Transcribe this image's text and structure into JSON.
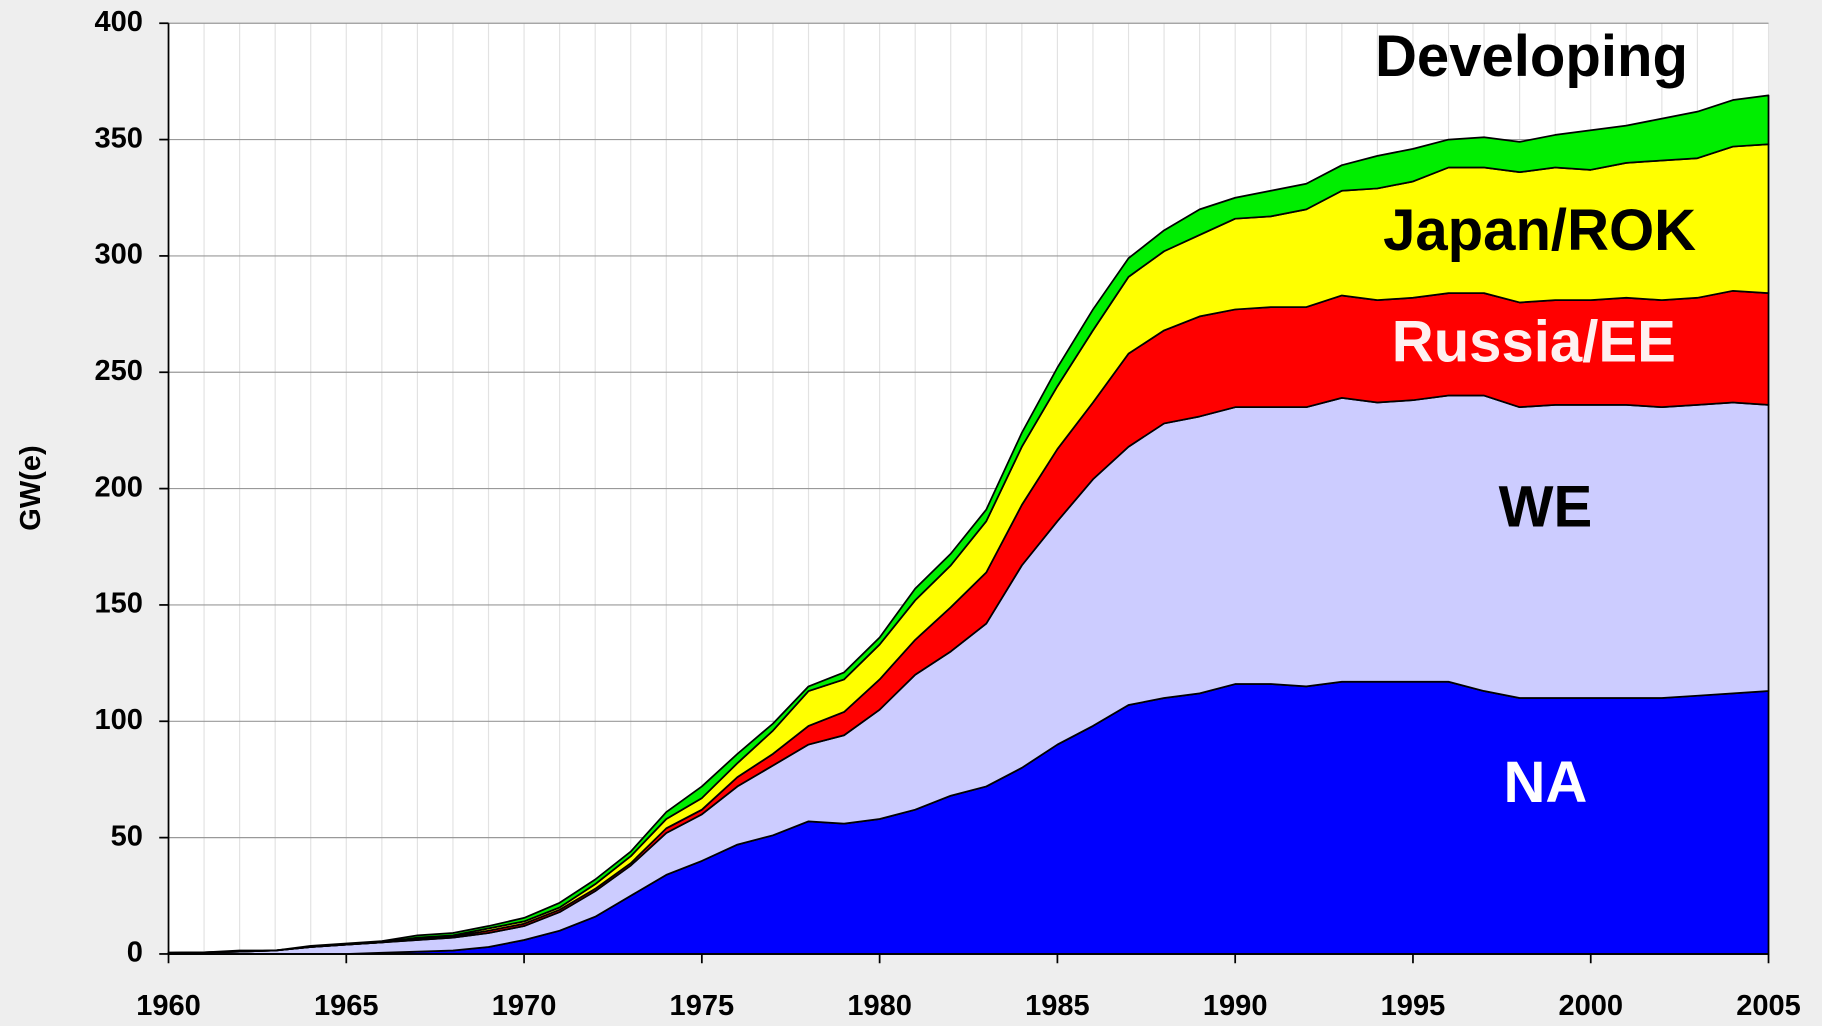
{
  "chart_data": {
    "type": "stacked-area",
    "y_label": "GW(e)",
    "x": [
      1960,
      1961,
      1962,
      1963,
      1964,
      1965,
      1966,
      1967,
      1968,
      1969,
      1970,
      1971,
      1972,
      1973,
      1974,
      1975,
      1976,
      1977,
      1978,
      1979,
      1980,
      1981,
      1982,
      1983,
      1984,
      1985,
      1986,
      1987,
      1988,
      1989,
      1990,
      1991,
      1992,
      1993,
      1994,
      1995,
      1996,
      1997,
      1998,
      1999,
      2000,
      2001,
      2002,
      2003,
      2004,
      2005
    ],
    "xlim": [
      1960,
      2005
    ],
    "xticks": [
      1960,
      1965,
      1970,
      1975,
      1980,
      1985,
      1990,
      1995,
      2000,
      2005
    ],
    "ylim": [
      0,
      400
    ],
    "yticks": [
      0,
      50,
      100,
      150,
      200,
      250,
      300,
      350,
      400
    ],
    "grid": true,
    "series": [
      {
        "name": "NA",
        "color": "#0000ff",
        "label_color": "#ffffff",
        "values": [
          0,
          0,
          0,
          0,
          0,
          0,
          0.5,
          1,
          1.5,
          3,
          6,
          10,
          16,
          25,
          34,
          40,
          47,
          51,
          57,
          56,
          58,
          62,
          68,
          72,
          80,
          90,
          98,
          107,
          110,
          112,
          116,
          116,
          115,
          117,
          117,
          117,
          117,
          113,
          110,
          110,
          110,
          110,
          110,
          111,
          112,
          113
        ]
      },
      {
        "name": "WE",
        "color": "#ccccff",
        "label_color": "#000000",
        "values": [
          0.5,
          0.7,
          1,
          1.5,
          3,
          4,
          4.5,
          5,
          5.5,
          6,
          6,
          8,
          11,
          13,
          18,
          20,
          25,
          30,
          33,
          38,
          47,
          58,
          62,
          70,
          87,
          96,
          106,
          111,
          118,
          119,
          119,
          119,
          120,
          122,
          120,
          121,
          123,
          127,
          125,
          126,
          126,
          126,
          125,
          125,
          125,
          123
        ]
      },
      {
        "name": "Russia/EE",
        "color": "#ff0000",
        "label_color": "#fff0f0",
        "values": [
          0,
          0,
          0,
          0,
          0,
          0,
          0,
          0.5,
          0.5,
          1,
          1,
          1,
          1,
          1,
          2,
          2,
          4,
          5,
          8,
          10,
          13,
          15,
          19,
          22,
          26,
          31,
          33,
          40,
          40,
          43,
          42,
          43,
          43,
          44,
          44,
          44,
          44,
          44,
          45,
          45,
          45,
          46,
          46,
          46,
          48,
          48
        ]
      },
      {
        "name": "Japan/ROK",
        "color": "#ffff00",
        "label_color": "#000000",
        "values": [
          0,
          0,
          0,
          0,
          0,
          0,
          0,
          0.5,
          0.5,
          1,
          1,
          1,
          2,
          3,
          4,
          5,
          6,
          10,
          15,
          14,
          15,
          17,
          18,
          22,
          25,
          27,
          31,
          33,
          34,
          35,
          39,
          39,
          42,
          45,
          48,
          50,
          54,
          54,
          56,
          57,
          56,
          58,
          60,
          60,
          62,
          64
        ]
      },
      {
        "name": "Developing",
        "color": "#00ee00",
        "label_color": "#000000",
        "values": [
          0,
          0,
          0.5,
          0,
          0.5,
          0.5,
          0.5,
          1,
          1,
          1,
          1.5,
          2,
          2,
          2,
          3,
          5,
          4,
          3,
          2,
          3,
          3,
          5,
          5,
          5,
          6,
          8,
          9,
          8,
          9,
          11,
          9,
          11,
          11,
          11,
          14,
          14,
          12,
          13,
          13,
          14,
          17,
          16,
          18,
          20,
          20,
          21
        ]
      }
    ]
  }
}
